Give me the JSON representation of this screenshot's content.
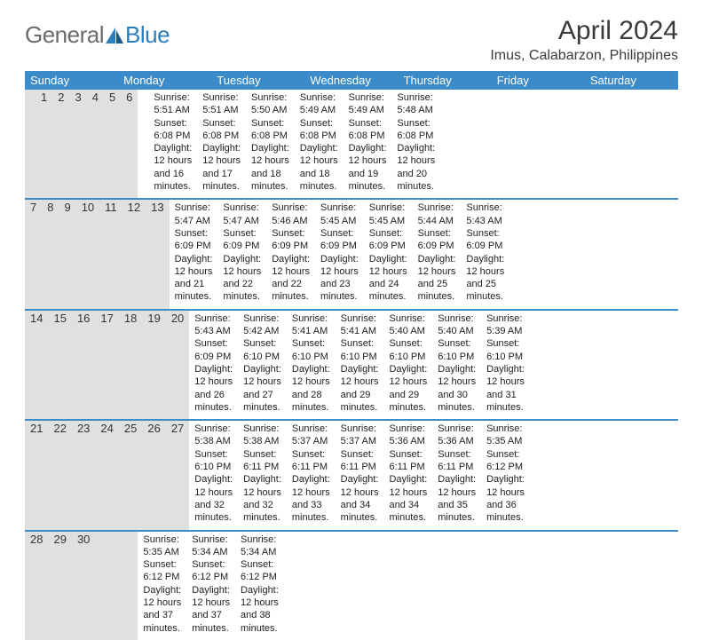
{
  "logo": {
    "text1": "General",
    "text2": "Blue"
  },
  "title": "April 2024",
  "location": "Imus, Calabarzon, Philippines",
  "colors": {
    "header_bg": "#3b8bc9",
    "header_text": "#ffffff",
    "daynum_bg": "#e0e0e0",
    "row_border": "#3b8bc9",
    "logo_gray": "#6b6b6b",
    "logo_blue": "#2b7dbb",
    "body_text": "#222222",
    "background": "#ffffff"
  },
  "weekdays": [
    "Sunday",
    "Monday",
    "Tuesday",
    "Wednesday",
    "Thursday",
    "Friday",
    "Saturday"
  ],
  "weeks": [
    [
      {
        "day": "",
        "sunrise": "",
        "sunset": "",
        "daylight": ""
      },
      {
        "day": "1",
        "sunrise": "Sunrise: 5:51 AM",
        "sunset": "Sunset: 6:08 PM",
        "daylight": "Daylight: 12 hours and 16 minutes."
      },
      {
        "day": "2",
        "sunrise": "Sunrise: 5:51 AM",
        "sunset": "Sunset: 6:08 PM",
        "daylight": "Daylight: 12 hours and 17 minutes."
      },
      {
        "day": "3",
        "sunrise": "Sunrise: 5:50 AM",
        "sunset": "Sunset: 6:08 PM",
        "daylight": "Daylight: 12 hours and 18 minutes."
      },
      {
        "day": "4",
        "sunrise": "Sunrise: 5:49 AM",
        "sunset": "Sunset: 6:08 PM",
        "daylight": "Daylight: 12 hours and 18 minutes."
      },
      {
        "day": "5",
        "sunrise": "Sunrise: 5:49 AM",
        "sunset": "Sunset: 6:08 PM",
        "daylight": "Daylight: 12 hours and 19 minutes."
      },
      {
        "day": "6",
        "sunrise": "Sunrise: 5:48 AM",
        "sunset": "Sunset: 6:08 PM",
        "daylight": "Daylight: 12 hours and 20 minutes."
      }
    ],
    [
      {
        "day": "7",
        "sunrise": "Sunrise: 5:47 AM",
        "sunset": "Sunset: 6:09 PM",
        "daylight": "Daylight: 12 hours and 21 minutes."
      },
      {
        "day": "8",
        "sunrise": "Sunrise: 5:47 AM",
        "sunset": "Sunset: 6:09 PM",
        "daylight": "Daylight: 12 hours and 22 minutes."
      },
      {
        "day": "9",
        "sunrise": "Sunrise: 5:46 AM",
        "sunset": "Sunset: 6:09 PM",
        "daylight": "Daylight: 12 hours and 22 minutes."
      },
      {
        "day": "10",
        "sunrise": "Sunrise: 5:45 AM",
        "sunset": "Sunset: 6:09 PM",
        "daylight": "Daylight: 12 hours and 23 minutes."
      },
      {
        "day": "11",
        "sunrise": "Sunrise: 5:45 AM",
        "sunset": "Sunset: 6:09 PM",
        "daylight": "Daylight: 12 hours and 24 minutes."
      },
      {
        "day": "12",
        "sunrise": "Sunrise: 5:44 AM",
        "sunset": "Sunset: 6:09 PM",
        "daylight": "Daylight: 12 hours and 25 minutes."
      },
      {
        "day": "13",
        "sunrise": "Sunrise: 5:43 AM",
        "sunset": "Sunset: 6:09 PM",
        "daylight": "Daylight: 12 hours and 25 minutes."
      }
    ],
    [
      {
        "day": "14",
        "sunrise": "Sunrise: 5:43 AM",
        "sunset": "Sunset: 6:09 PM",
        "daylight": "Daylight: 12 hours and 26 minutes."
      },
      {
        "day": "15",
        "sunrise": "Sunrise: 5:42 AM",
        "sunset": "Sunset: 6:10 PM",
        "daylight": "Daylight: 12 hours and 27 minutes."
      },
      {
        "day": "16",
        "sunrise": "Sunrise: 5:41 AM",
        "sunset": "Sunset: 6:10 PM",
        "daylight": "Daylight: 12 hours and 28 minutes."
      },
      {
        "day": "17",
        "sunrise": "Sunrise: 5:41 AM",
        "sunset": "Sunset: 6:10 PM",
        "daylight": "Daylight: 12 hours and 29 minutes."
      },
      {
        "day": "18",
        "sunrise": "Sunrise: 5:40 AM",
        "sunset": "Sunset: 6:10 PM",
        "daylight": "Daylight: 12 hours and 29 minutes."
      },
      {
        "day": "19",
        "sunrise": "Sunrise: 5:40 AM",
        "sunset": "Sunset: 6:10 PM",
        "daylight": "Daylight: 12 hours and 30 minutes."
      },
      {
        "day": "20",
        "sunrise": "Sunrise: 5:39 AM",
        "sunset": "Sunset: 6:10 PM",
        "daylight": "Daylight: 12 hours and 31 minutes."
      }
    ],
    [
      {
        "day": "21",
        "sunrise": "Sunrise: 5:38 AM",
        "sunset": "Sunset: 6:10 PM",
        "daylight": "Daylight: 12 hours and 32 minutes."
      },
      {
        "day": "22",
        "sunrise": "Sunrise: 5:38 AM",
        "sunset": "Sunset: 6:11 PM",
        "daylight": "Daylight: 12 hours and 32 minutes."
      },
      {
        "day": "23",
        "sunrise": "Sunrise: 5:37 AM",
        "sunset": "Sunset: 6:11 PM",
        "daylight": "Daylight: 12 hours and 33 minutes."
      },
      {
        "day": "24",
        "sunrise": "Sunrise: 5:37 AM",
        "sunset": "Sunset: 6:11 PM",
        "daylight": "Daylight: 12 hours and 34 minutes."
      },
      {
        "day": "25",
        "sunrise": "Sunrise: 5:36 AM",
        "sunset": "Sunset: 6:11 PM",
        "daylight": "Daylight: 12 hours and 34 minutes."
      },
      {
        "day": "26",
        "sunrise": "Sunrise: 5:36 AM",
        "sunset": "Sunset: 6:11 PM",
        "daylight": "Daylight: 12 hours and 35 minutes."
      },
      {
        "day": "27",
        "sunrise": "Sunrise: 5:35 AM",
        "sunset": "Sunset: 6:12 PM",
        "daylight": "Daylight: 12 hours and 36 minutes."
      }
    ],
    [
      {
        "day": "28",
        "sunrise": "Sunrise: 5:35 AM",
        "sunset": "Sunset: 6:12 PM",
        "daylight": "Daylight: 12 hours and 37 minutes."
      },
      {
        "day": "29",
        "sunrise": "Sunrise: 5:34 AM",
        "sunset": "Sunset: 6:12 PM",
        "daylight": "Daylight: 12 hours and 37 minutes."
      },
      {
        "day": "30",
        "sunrise": "Sunrise: 5:34 AM",
        "sunset": "Sunset: 6:12 PM",
        "daylight": "Daylight: 12 hours and 38 minutes."
      },
      {
        "day": "",
        "sunrise": "",
        "sunset": "",
        "daylight": ""
      },
      {
        "day": "",
        "sunrise": "",
        "sunset": "",
        "daylight": ""
      },
      {
        "day": "",
        "sunrise": "",
        "sunset": "",
        "daylight": ""
      },
      {
        "day": "",
        "sunrise": "",
        "sunset": "",
        "daylight": ""
      }
    ]
  ]
}
